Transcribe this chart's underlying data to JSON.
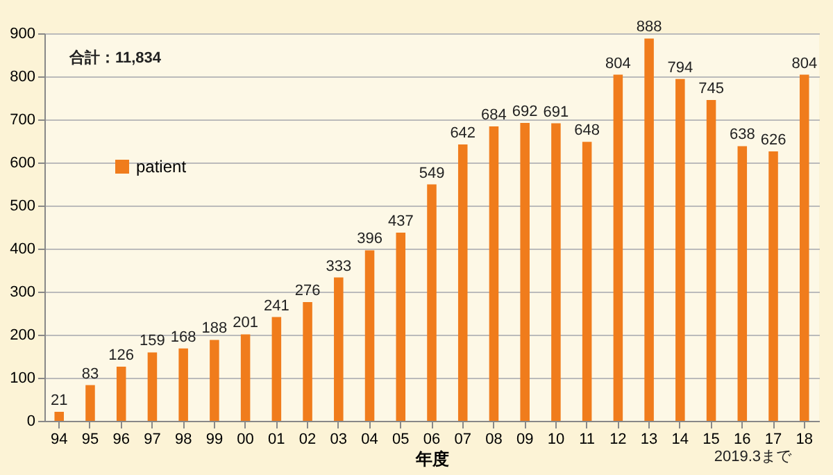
{
  "chart_data": {
    "type": "bar",
    "xlabel": "年度",
    "categories": [
      "94",
      "95",
      "96",
      "97",
      "98",
      "99",
      "00",
      "01",
      "02",
      "03",
      "04",
      "05",
      "06",
      "07",
      "08",
      "09",
      "10",
      "11",
      "12",
      "13",
      "14",
      "15",
      "16",
      "17",
      "18"
    ],
    "series": [
      {
        "name": "patient",
        "color": "#f07c1c",
        "values": [
          21,
          83,
          126,
          159,
          168,
          188,
          201,
          241,
          276,
          333,
          396,
          437,
          549,
          642,
          684,
          692,
          691,
          648,
          804,
          888,
          794,
          745,
          638,
          626,
          804
        ]
      }
    ],
    "ylim": [
      0,
      900
    ],
    "yticks": [
      0,
      100,
      200,
      300,
      400,
      500,
      600,
      700,
      800,
      900
    ],
    "grid": "y",
    "legend": "top left",
    "data_labels": true,
    "annotations": [
      "合計：11,834",
      "2019.3まで"
    ]
  }
}
